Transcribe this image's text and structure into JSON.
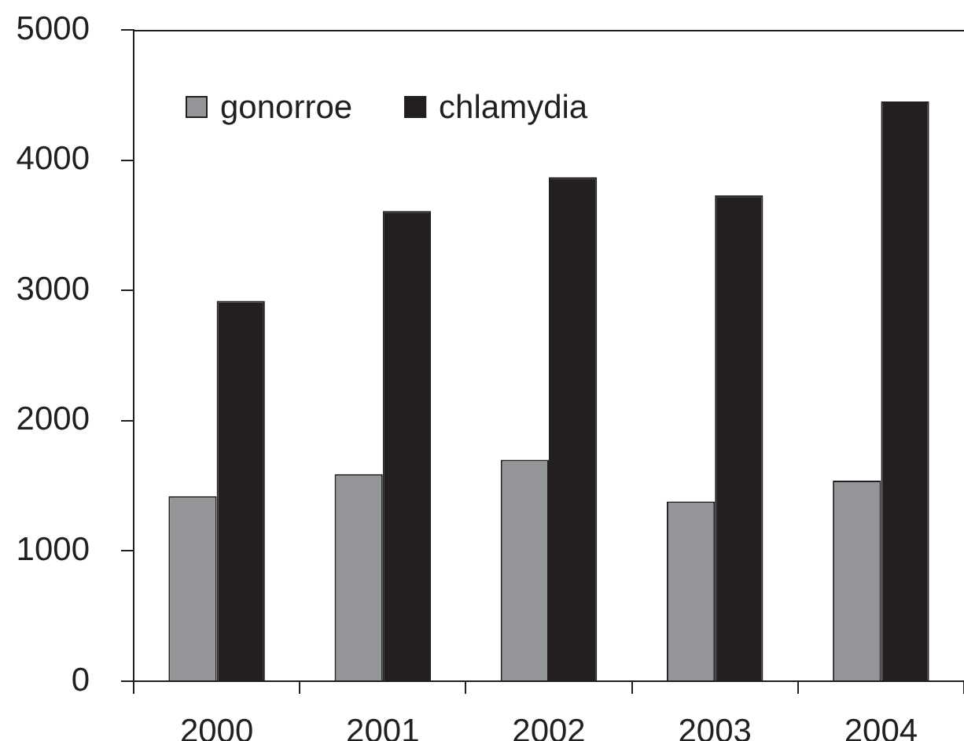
{
  "chart_data": {
    "type": "bar",
    "categories": [
      "2000",
      "2001",
      "2002",
      "2003",
      "2004"
    ],
    "series": [
      {
        "name": "gonorroe",
        "color": "#939598",
        "values": [
          1420,
          1590,
          1700,
          1380,
          1540
        ]
      },
      {
        "name": "chlamydia",
        "color": "#231f20",
        "values": [
          2920,
          3610,
          3870,
          3730,
          4450
        ]
      }
    ],
    "ylim": [
      0,
      5000
    ],
    "yticks": [
      0,
      1000,
      2000,
      3000,
      4000,
      5000
    ],
    "grid": false,
    "legend": "top left"
  }
}
